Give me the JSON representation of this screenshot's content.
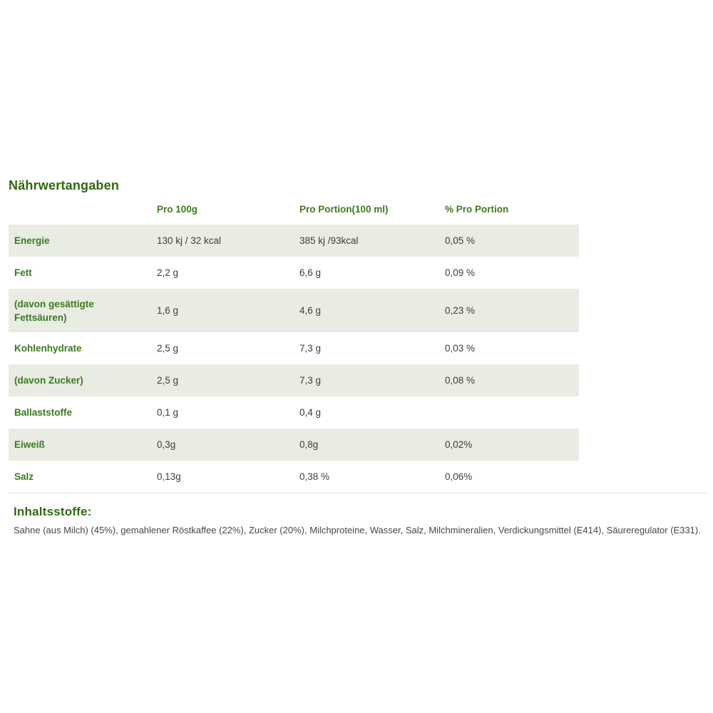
{
  "nutrition": {
    "title": "Nährwertangaben",
    "columns": {
      "label": "",
      "per100g": "Pro 100g",
      "perPortion": "Pro Portion(100 ml)",
      "percentPortion": "% Pro Portion"
    },
    "rows": [
      {
        "label": "Energie",
        "per100g": "130 kj / 32 kcal",
        "perPortion": "385 kj /93kcal",
        "percent": "0,05 %"
      },
      {
        "label": "Fett",
        "per100g": "2,2 g",
        "perPortion": "6,6 g",
        "percent": "0,09 %"
      },
      {
        "label": "(davon gesättigte Fettsäuren)",
        "per100g": "1,6 g",
        "perPortion": "4,6 g",
        "percent": "0,23 %"
      },
      {
        "label": "Kohlenhydrate",
        "per100g": "2,5 g",
        "perPortion": "7,3 g",
        "percent": "0,03 %"
      },
      {
        "label": "(davon Zucker)",
        "per100g": "2,5 g",
        "perPortion": "7,3 g",
        "percent": "0,08 %"
      },
      {
        "label": "Ballaststoffe",
        "per100g": "0,1 g",
        "perPortion": "0,4 g",
        "percent": ""
      },
      {
        "label": "Eiweiß",
        "per100g": "0,3g",
        "perPortion": "0,8g",
        "percent": "0,02%"
      },
      {
        "label": "Salz",
        "per100g": "0,13g",
        "perPortion": "0,38 %",
        "percent": "0,06%"
      }
    ]
  },
  "ingredients": {
    "title": "Inhaltsstoffe:",
    "text": "Sahne (aus Milch) (45%), gemahlener Röstkaffee (22%), Zucker (20%), Milchproteine, Wasser, Salz, Milchmineralien, Verdickungsmittel (E414), Säureregulator (E331)."
  },
  "colors": {
    "heading_green": "#2f6910",
    "label_green": "#3a7a1e",
    "row_shade": "#e9ece3",
    "value_text": "#3d3d3d",
    "divider": "#e3e3e3",
    "background": "#ffffff"
  }
}
